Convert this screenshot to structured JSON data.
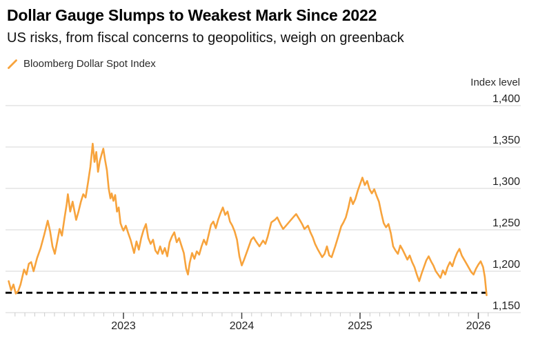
{
  "chart_data": {
    "type": "line",
    "title": "Dollar Gauge Slumps to Weakest Mark Since 2022",
    "subtitle": "US risks, from fiscal concerns to geopolitics, weigh on greenback",
    "ylabel": "Index level",
    "legend_position": "top-left",
    "grid": "horizontal-only",
    "colors": {
      "line": "#F7A33C",
      "grid": "#D4D4D4",
      "minor_tick": "#C9C9C9",
      "major_tick": "#3D3D3D",
      "text": "#222222",
      "reference_line": "#000000",
      "background": "#FFFFFF"
    },
    "y_axis": {
      "min": 1150,
      "max": 1400,
      "ticks": [
        {
          "value": 1400,
          "label": "1,400"
        },
        {
          "value": 1350,
          "label": "1,350"
        },
        {
          "value": 1300,
          "label": "1,300"
        },
        {
          "value": 1250,
          "label": "1,250"
        },
        {
          "value": 1200,
          "label": "1,200"
        },
        {
          "value": 1150,
          "label": "1,150"
        }
      ]
    },
    "x_axis": {
      "range": [
        2022.02,
        2026.12
      ],
      "minor_tick_interval_months": 1,
      "ticks": [
        {
          "value": 2023,
          "label": "2023"
        },
        {
          "value": 2024,
          "label": "2024"
        },
        {
          "value": 2025,
          "label": "2025"
        },
        {
          "value": 2026,
          "label": "2026"
        }
      ]
    },
    "reference_line": {
      "value": 1174,
      "style": "dashed"
    },
    "series": [
      {
        "name": "Bloomberg Dollar Spot Index",
        "color": "#F7A33C",
        "points": [
          [
            2022.03,
            1188
          ],
          [
            2022.05,
            1177
          ],
          [
            2022.07,
            1184
          ],
          [
            2022.09,
            1173
          ],
          [
            2022.11,
            1176
          ],
          [
            2022.13,
            1184
          ],
          [
            2022.16,
            1202
          ],
          [
            2022.18,
            1196
          ],
          [
            2022.2,
            1209
          ],
          [
            2022.22,
            1211
          ],
          [
            2022.24,
            1200
          ],
          [
            2022.27,
            1216
          ],
          [
            2022.3,
            1228
          ],
          [
            2022.33,
            1244
          ],
          [
            2022.36,
            1261
          ],
          [
            2022.38,
            1248
          ],
          [
            2022.4,
            1230
          ],
          [
            2022.42,
            1221
          ],
          [
            2022.44,
            1236
          ],
          [
            2022.46,
            1251
          ],
          [
            2022.48,
            1243
          ],
          [
            2022.5,
            1263
          ],
          [
            2022.52,
            1281
          ],
          [
            2022.53,
            1293
          ],
          [
            2022.55,
            1272
          ],
          [
            2022.57,
            1284
          ],
          [
            2022.6,
            1262
          ],
          [
            2022.62,
            1272
          ],
          [
            2022.64,
            1284
          ],
          [
            2022.66,
            1293
          ],
          [
            2022.68,
            1289
          ],
          [
            2022.7,
            1307
          ],
          [
            2022.72,
            1326
          ],
          [
            2022.74,
            1354
          ],
          [
            2022.755,
            1332
          ],
          [
            2022.77,
            1344
          ],
          [
            2022.785,
            1320
          ],
          [
            2022.8,
            1333
          ],
          [
            2022.815,
            1341
          ],
          [
            2022.83,
            1348
          ],
          [
            2022.845,
            1334
          ],
          [
            2022.86,
            1322
          ],
          [
            2022.875,
            1300
          ],
          [
            2022.89,
            1288
          ],
          [
            2022.9,
            1294
          ],
          [
            2022.915,
            1285
          ],
          [
            2022.93,
            1292
          ],
          [
            2022.945,
            1272
          ],
          [
            2022.96,
            1277
          ],
          [
            2022.975,
            1258
          ],
          [
            2022.99,
            1252
          ],
          [
            2023.0,
            1249
          ],
          [
            2023.02,
            1255
          ],
          [
            2023.04,
            1246
          ],
          [
            2023.06,
            1238
          ],
          [
            2023.09,
            1222
          ],
          [
            2023.11,
            1236
          ],
          [
            2023.13,
            1226
          ],
          [
            2023.15,
            1240
          ],
          [
            2023.17,
            1250
          ],
          [
            2023.19,
            1257
          ],
          [
            2023.21,
            1240
          ],
          [
            2023.23,
            1233
          ],
          [
            2023.25,
            1238
          ],
          [
            2023.27,
            1225
          ],
          [
            2023.29,
            1221
          ],
          [
            2023.31,
            1230
          ],
          [
            2023.33,
            1221
          ],
          [
            2023.35,
            1228
          ],
          [
            2023.37,
            1218
          ],
          [
            2023.39,
            1235
          ],
          [
            2023.41,
            1242
          ],
          [
            2023.43,
            1247
          ],
          [
            2023.45,
            1235
          ],
          [
            2023.47,
            1240
          ],
          [
            2023.49,
            1231
          ],
          [
            2023.51,
            1222
          ],
          [
            2023.53,
            1203
          ],
          [
            2023.545,
            1196
          ],
          [
            2023.56,
            1210
          ],
          [
            2023.58,
            1222
          ],
          [
            2023.6,
            1215
          ],
          [
            2023.62,
            1224
          ],
          [
            2023.64,
            1220
          ],
          [
            2023.66,
            1230
          ],
          [
            2023.68,
            1238
          ],
          [
            2023.7,
            1232
          ],
          [
            2023.72,
            1244
          ],
          [
            2023.74,
            1256
          ],
          [
            2023.76,
            1260
          ],
          [
            2023.78,
            1252
          ],
          [
            2023.8,
            1262
          ],
          [
            2023.82,
            1270
          ],
          [
            2023.84,
            1277
          ],
          [
            2023.86,
            1268
          ],
          [
            2023.88,
            1272
          ],
          [
            2023.9,
            1260
          ],
          [
            2023.92,
            1255
          ],
          [
            2023.94,
            1248
          ],
          [
            2023.96,
            1238
          ],
          [
            2023.98,
            1218
          ],
          [
            2024.0,
            1207
          ],
          [
            2024.02,
            1214
          ],
          [
            2024.05,
            1226
          ],
          [
            2024.08,
            1238
          ],
          [
            2024.1,
            1241
          ],
          [
            2024.12,
            1236
          ],
          [
            2024.15,
            1230
          ],
          [
            2024.18,
            1237
          ],
          [
            2024.2,
            1233
          ],
          [
            2024.22,
            1242
          ],
          [
            2024.25,
            1259
          ],
          [
            2024.28,
            1262
          ],
          [
            2024.3,
            1265
          ],
          [
            2024.33,
            1256
          ],
          [
            2024.35,
            1251
          ],
          [
            2024.38,
            1256
          ],
          [
            2024.41,
            1261
          ],
          [
            2024.44,
            1266
          ],
          [
            2024.46,
            1269
          ],
          [
            2024.49,
            1262
          ],
          [
            2024.51,
            1257
          ],
          [
            2024.53,
            1251
          ],
          [
            2024.56,
            1255
          ],
          [
            2024.58,
            1247
          ],
          [
            2024.6,
            1241
          ],
          [
            2024.62,
            1233
          ],
          [
            2024.64,
            1227
          ],
          [
            2024.66,
            1222
          ],
          [
            2024.68,
            1217
          ],
          [
            2024.7,
            1221
          ],
          [
            2024.72,
            1230
          ],
          [
            2024.74,
            1219
          ],
          [
            2024.76,
            1217
          ],
          [
            2024.79,
            1230
          ],
          [
            2024.82,
            1244
          ],
          [
            2024.84,
            1254
          ],
          [
            2024.86,
            1259
          ],
          [
            2024.88,
            1265
          ],
          [
            2024.9,
            1276
          ],
          [
            2024.92,
            1289
          ],
          [
            2024.94,
            1281
          ],
          [
            2024.96,
            1287
          ],
          [
            2024.98,
            1297
          ],
          [
            2025.0,
            1305
          ],
          [
            2025.02,
            1313
          ],
          [
            2025.04,
            1304
          ],
          [
            2025.06,
            1309
          ],
          [
            2025.08,
            1299
          ],
          [
            2025.1,
            1294
          ],
          [
            2025.12,
            1299
          ],
          [
            2025.14,
            1291
          ],
          [
            2025.16,
            1284
          ],
          [
            2025.18,
            1270
          ],
          [
            2025.2,
            1258
          ],
          [
            2025.22,
            1253
          ],
          [
            2025.24,
            1257
          ],
          [
            2025.26,
            1246
          ],
          [
            2025.28,
            1230
          ],
          [
            2025.3,
            1225
          ],
          [
            2025.32,
            1221
          ],
          [
            2025.34,
            1231
          ],
          [
            2025.36,
            1226
          ],
          [
            2025.38,
            1220
          ],
          [
            2025.4,
            1214
          ],
          [
            2025.42,
            1219
          ],
          [
            2025.44,
            1211
          ],
          [
            2025.46,
            1205
          ],
          [
            2025.48,
            1196
          ],
          [
            2025.5,
            1188
          ],
          [
            2025.52,
            1197
          ],
          [
            2025.54,
            1205
          ],
          [
            2025.56,
            1213
          ],
          [
            2025.58,
            1218
          ],
          [
            2025.6,
            1212
          ],
          [
            2025.62,
            1207
          ],
          [
            2025.64,
            1200
          ],
          [
            2025.66,
            1196
          ],
          [
            2025.68,
            1192
          ],
          [
            2025.7,
            1201
          ],
          [
            2025.72,
            1196
          ],
          [
            2025.74,
            1205
          ],
          [
            2025.76,
            1211
          ],
          [
            2025.78,
            1206
          ],
          [
            2025.8,
            1215
          ],
          [
            2025.82,
            1222
          ],
          [
            2025.84,
            1227
          ],
          [
            2025.86,
            1219
          ],
          [
            2025.88,
            1214
          ],
          [
            2025.9,
            1209
          ],
          [
            2025.92,
            1204
          ],
          [
            2025.94,
            1199
          ],
          [
            2025.96,
            1196
          ],
          [
            2025.98,
            1203
          ],
          [
            2026.0,
            1208
          ],
          [
            2026.02,
            1212
          ],
          [
            2026.04,
            1205
          ],
          [
            2026.055,
            1193
          ],
          [
            2026.07,
            1171
          ]
        ]
      }
    ]
  }
}
